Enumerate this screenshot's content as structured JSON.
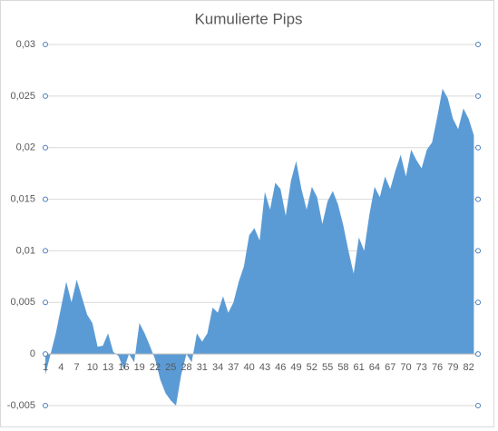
{
  "chart_data": {
    "type": "area",
    "title": "Kumulierte Pips",
    "categories": [
      1,
      null,
      null,
      4,
      null,
      null,
      7,
      null,
      null,
      10,
      null,
      null,
      13,
      null,
      null,
      16,
      null,
      null,
      19,
      null,
      null,
      22,
      null,
      null,
      25,
      null,
      null,
      28,
      null,
      null,
      31,
      null,
      null,
      34,
      null,
      null,
      37,
      null,
      null,
      40,
      null,
      null,
      43,
      null,
      null,
      46,
      null,
      null,
      49,
      null,
      null,
      52,
      null,
      null,
      55,
      null,
      null,
      58,
      null,
      null,
      61,
      null,
      null,
      64,
      null,
      null,
      67,
      null,
      null,
      70,
      null,
      null,
      73,
      null,
      null,
      76,
      null,
      null,
      79,
      null,
      null,
      82,
      null
    ],
    "values": [
      -0.002,
      0,
      0.002,
      0.0045,
      0.007,
      0.005,
      0.0072,
      0.0055,
      0.0038,
      0.003,
      0.0007,
      0.0008,
      0.002,
      0.0002,
      -0.0002,
      -0.0015,
      0,
      -0.0008,
      0.003,
      0.002,
      0.0008,
      -0.0005,
      -0.0025,
      -0.0038,
      -0.0045,
      -0.005,
      -0.002,
      0,
      -0.0008,
      0.002,
      0.0012,
      0.002,
      0.0045,
      0.004,
      0.0056,
      0.004,
      0.005,
      0.007,
      0.0085,
      0.0115,
      0.0122,
      0.011,
      0.0157,
      0.014,
      0.0166,
      0.016,
      0.0134,
      0.0168,
      0.0187,
      0.016,
      0.014,
      0.0162,
      0.0152,
      0.0126,
      0.0148,
      0.0158,
      0.0145,
      0.0125,
      0.01,
      0.0078,
      0.0113,
      0.01,
      0.0135,
      0.0162,
      0.0152,
      0.0172,
      0.016,
      0.0178,
      0.0193,
      0.0172,
      0.0198,
      0.0188,
      0.018,
      0.0198,
      0.0205,
      0.023,
      0.0257,
      0.0248,
      0.0228,
      0.0218,
      0.0238,
      0.0228,
      0.0212
    ],
    "color": "#5b9bd5",
    "ylim": [
      -0.005,
      0.03
    ],
    "yticks": [
      {
        "value": -0.005,
        "label": "-0,005"
      },
      0,
      {
        "value": 0.005,
        "label": "0,005"
      },
      {
        "value": 0.01,
        "label": "0,01"
      },
      {
        "value": 0.015,
        "label": "0,015"
      },
      {
        "value": 0.02,
        "label": "0,02"
      },
      {
        "value": 0.025,
        "label": "0,025"
      },
      {
        "value": 0.03,
        "label": "0,03"
      }
    ],
    "grid": true
  }
}
